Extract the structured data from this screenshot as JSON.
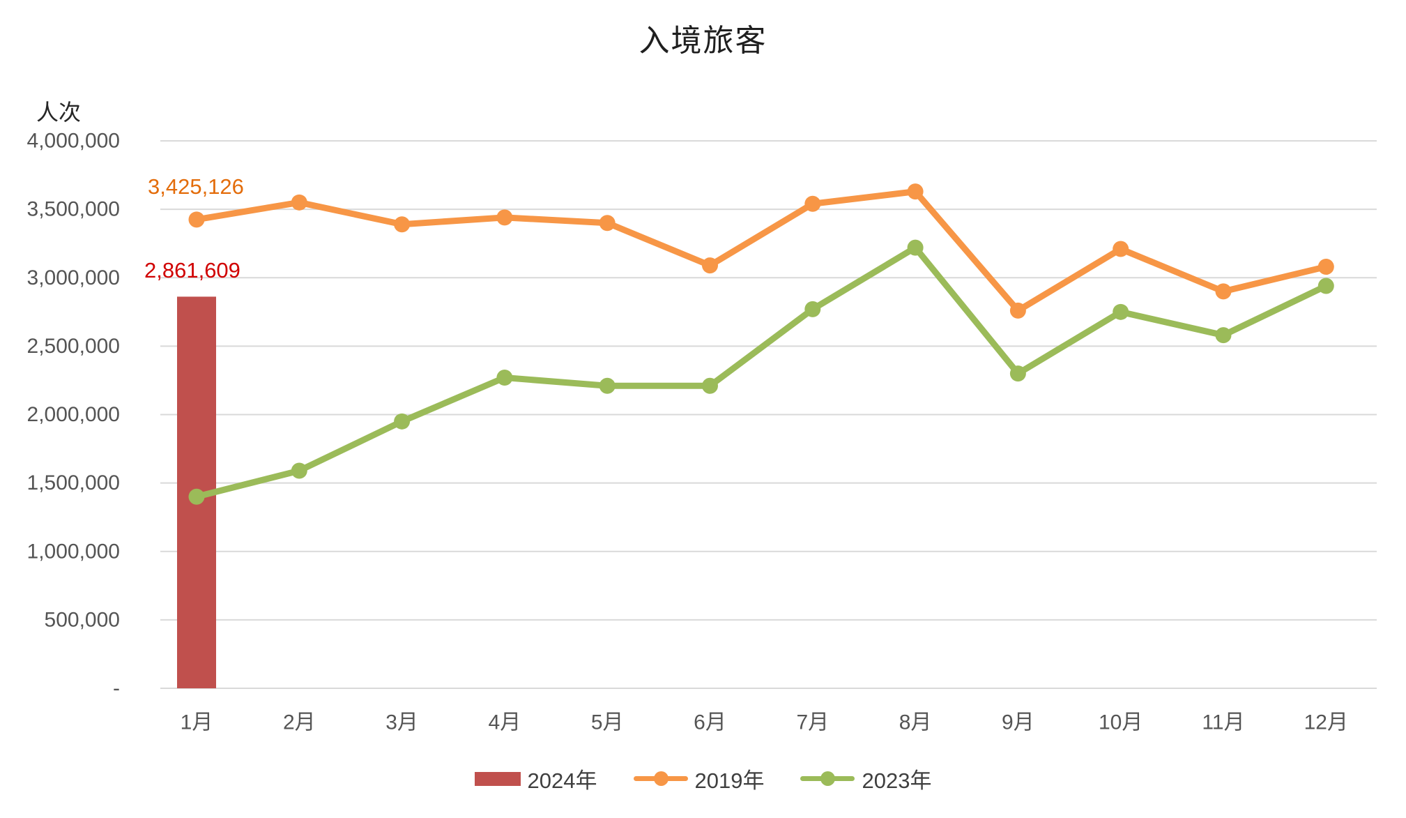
{
  "chart_data": {
    "type": "combo",
    "title": "入境旅客",
    "ylabel": "人次",
    "grid": true,
    "legend_position": "bottom",
    "categories": [
      "1月",
      "2月",
      "3月",
      "4月",
      "5月",
      "6月",
      "7月",
      "8月",
      "9月",
      "10月",
      "11月",
      "12月"
    ],
    "series": [
      {
        "name": "2024年",
        "type": "bar",
        "color": "#C0504D",
        "values": [
          2861609,
          null,
          null,
          null,
          null,
          null,
          null,
          null,
          null,
          null,
          null,
          null
        ]
      },
      {
        "name": "2019年",
        "type": "line",
        "color": "#F79646",
        "values": [
          3425126,
          3550000,
          3390000,
          3440000,
          3400000,
          3090000,
          3540000,
          3630000,
          2760000,
          3210000,
          2900000,
          3080000
        ]
      },
      {
        "name": "2023年",
        "type": "line",
        "color": "#9BBB59",
        "values": [
          1400000,
          1590000,
          1950000,
          2270000,
          2210000,
          2210000,
          2770000,
          3220000,
          2300000,
          2750000,
          2580000,
          2940000
        ]
      }
    ],
    "y_axis": {
      "min": 0,
      "max": 4000000,
      "step": 500000,
      "tick_labels": [
        "-",
        "500,000",
        "1,000,000",
        "1,500,000",
        "2,000,000",
        "2,500,000",
        "3,000,000",
        "3,500,000",
        "4,000,000"
      ]
    },
    "data_labels": [
      {
        "text": "3,425,126",
        "series": "2019年",
        "category": "1月",
        "color": "#E36C0A"
      },
      {
        "text": "2,861,609",
        "series": "2024年",
        "category": "1月",
        "color": "#D00000"
      }
    ]
  }
}
